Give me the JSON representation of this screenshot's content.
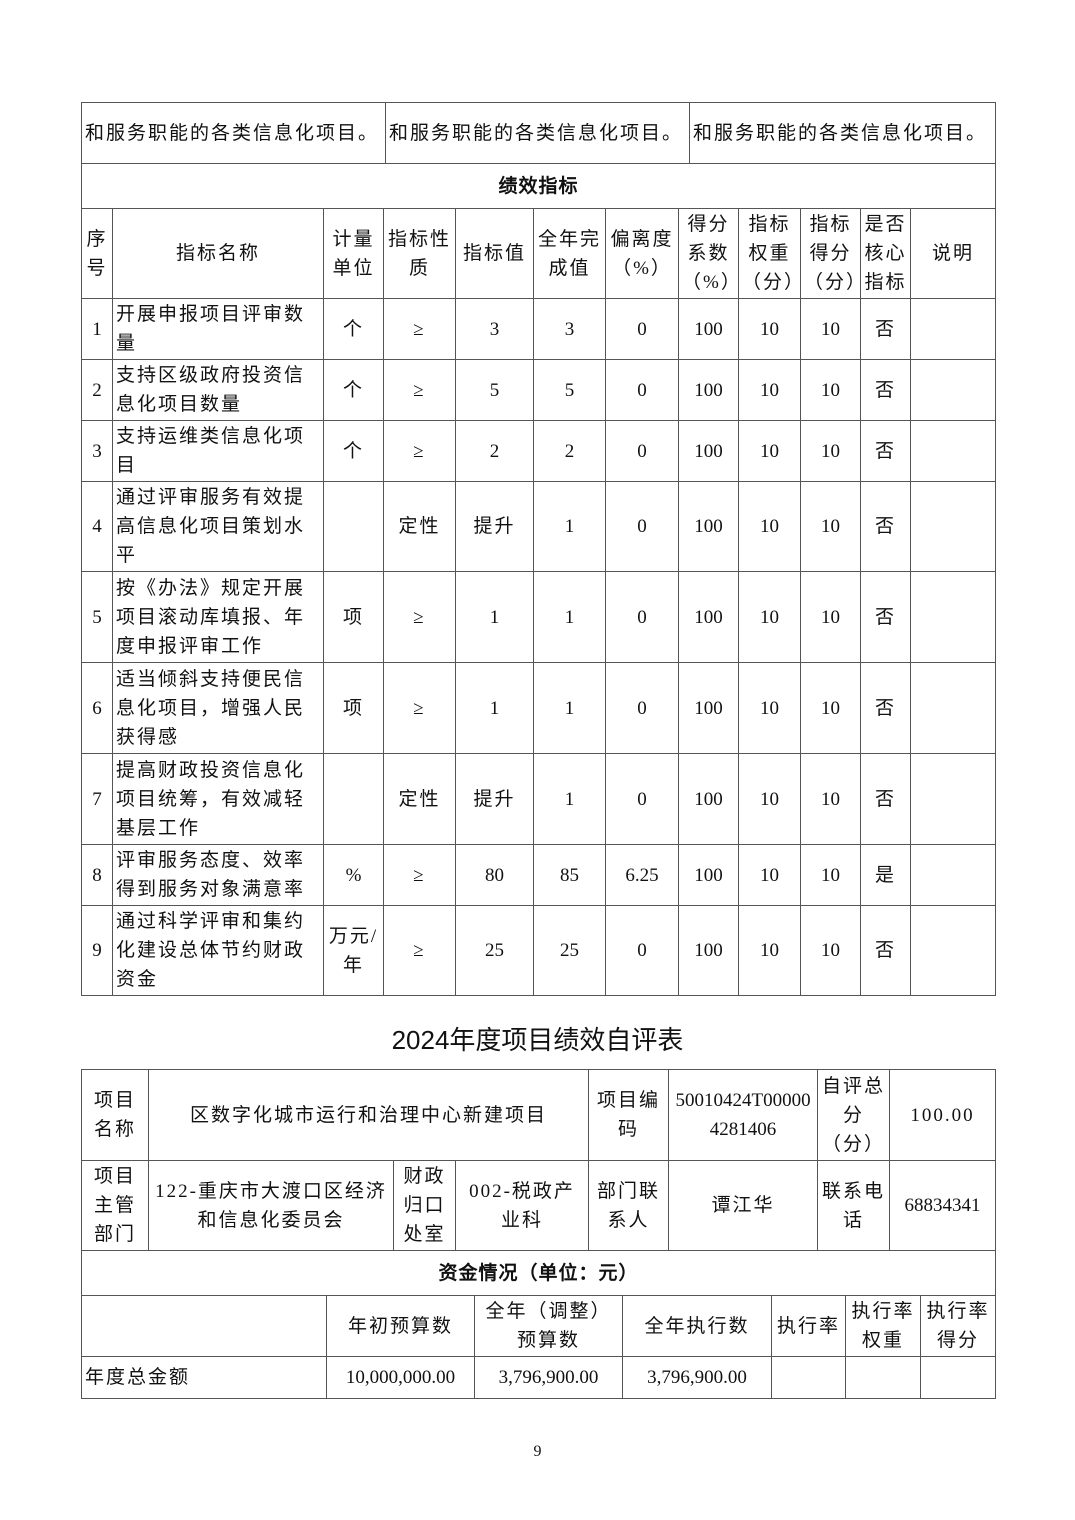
{
  "top_row": [
    "和服务职能的各类信息化项目。",
    "和服务职能的各类信息化项目。",
    "和服务职能的各类信息化项目。"
  ],
  "perf": {
    "heading": "绩效指标",
    "headers": [
      "序号",
      "指标名称",
      "计量单位",
      "指标性质",
      "指标值",
      "全年完成值",
      "偏离度（%）",
      "得分系数（%）",
      "指标权重（分）",
      "指标得分（分）",
      "是否核心指标",
      "说明"
    ],
    "rows": [
      [
        "1",
        "开展申报项目评审数量",
        "个",
        "≥",
        "3",
        "3",
        "0",
        "100",
        "10",
        "10",
        "否",
        ""
      ],
      [
        "2",
        "支持区级政府投资信息化项目数量",
        "个",
        "≥",
        "5",
        "5",
        "0",
        "100",
        "10",
        "10",
        "否",
        ""
      ],
      [
        "3",
        "支持运维类信息化项目",
        "个",
        "≥",
        "2",
        "2",
        "0",
        "100",
        "10",
        "10",
        "否",
        ""
      ],
      [
        "4",
        "通过评审服务有效提高信息化项目策划水平",
        "",
        "定性",
        "提升",
        "1",
        "0",
        "100",
        "10",
        "10",
        "否",
        ""
      ],
      [
        "5",
        "按《办法》规定开展项目滚动库填报、年度申报评审工作",
        "项",
        "≥",
        "1",
        "1",
        "0",
        "100",
        "10",
        "10",
        "否",
        ""
      ],
      [
        "6",
        "适当倾斜支持便民信息化项目，增强人民获得感",
        "项",
        "≥",
        "1",
        "1",
        "0",
        "100",
        "10",
        "10",
        "否",
        ""
      ],
      [
        "7",
        "提高财政投资信息化项目统筹，有效减轻基层工作",
        "",
        "定性",
        "提升",
        "1",
        "0",
        "100",
        "10",
        "10",
        "否",
        ""
      ],
      [
        "8",
        "评审服务态度、效率得到服务对象满意率",
        "%",
        "≥",
        "80",
        "85",
        "6.25",
        "100",
        "10",
        "10",
        "是",
        ""
      ],
      [
        "9",
        "通过科学评审和集约化建设总体节约财政资金",
        "万元/年",
        "≥",
        "25",
        "25",
        "0",
        "100",
        "10",
        "10",
        "否",
        ""
      ]
    ]
  },
  "title": "2024年度项目绩效自评表",
  "info": {
    "name_label": "项目名称",
    "name": "区数字化城市运行和治理中心新建项目",
    "code_label": "项目编码",
    "code": "50010424T000004281406",
    "score_label": "自评总分（分）",
    "score": "100.00",
    "dept_label": "项目主管部门",
    "dept": "122-重庆市大渡口区经济和信息化委员会",
    "office_label": "财政归口处室",
    "office": "002-税政产业科",
    "contact_label": "部门联系人",
    "contact": "谭江华",
    "phone_label": "联系电话",
    "phone": "68834341"
  },
  "funds": {
    "heading": "资金情况（单位：元）",
    "headers": [
      "",
      "年初预算数",
      "全年（调整）预算数",
      "全年执行数",
      "执行率",
      "执行率权重",
      "执行率得分"
    ],
    "rows": [
      [
        "年度总金额",
        "10,000,000.00",
        "3,796,900.00",
        "3,796,900.00",
        "",
        "",
        ""
      ]
    ]
  },
  "page_number": "9"
}
